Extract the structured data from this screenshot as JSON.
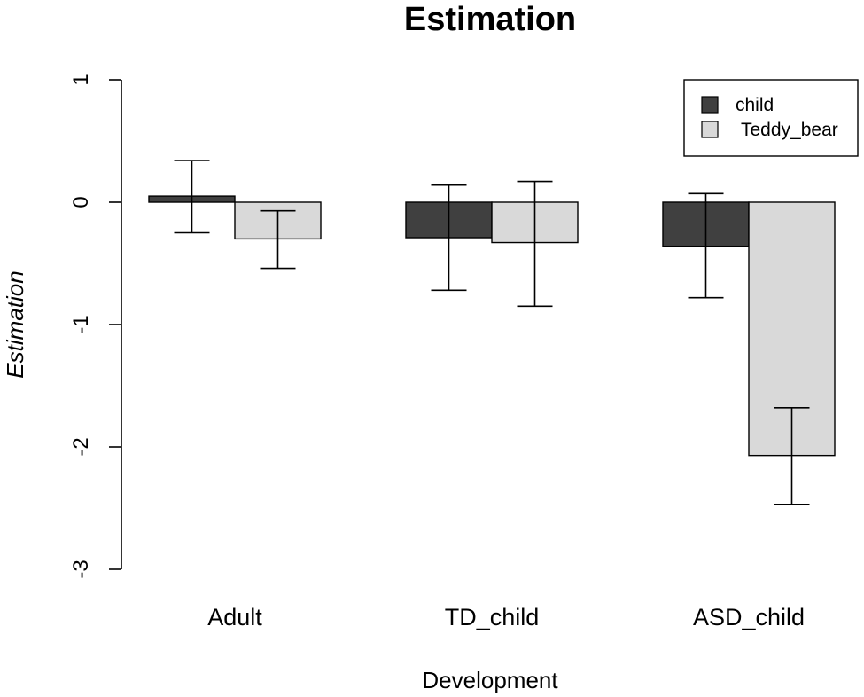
{
  "chart_data": {
    "type": "bar",
    "title": "Estimation",
    "xlabel": "Development",
    "ylabel": "Estimation",
    "ylim": [
      -3,
      1
    ],
    "yticks": [
      1,
      0,
      -1,
      -2,
      -3
    ],
    "categories": [
      "Adult",
      "TD_child",
      "ASD_child"
    ],
    "series": [
      {
        "name": "child",
        "color": "#404040",
        "values": [
          0.05,
          -0.29,
          -0.36
        ],
        "err_low": [
          -0.25,
          -0.72,
          -0.78
        ],
        "err_high": [
          0.34,
          0.14,
          0.07
        ]
      },
      {
        "name": "Teddy_bear",
        "color": "#d9d9d9",
        "values": [
          -0.3,
          -0.33,
          -2.07
        ],
        "err_low": [
          -0.54,
          -0.85,
          -2.47
        ],
        "err_high": [
          -0.07,
          0.17,
          -1.68
        ]
      }
    ],
    "legend_position": "top-right",
    "grid": false
  }
}
